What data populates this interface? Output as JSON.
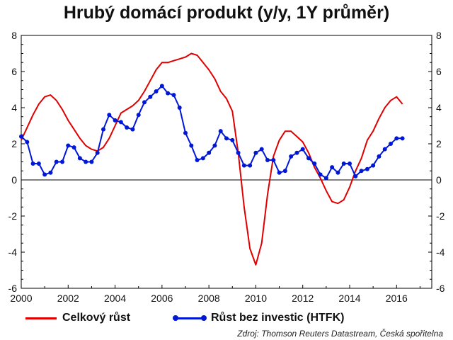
{
  "chart_data": {
    "type": "line",
    "title": "Hrubý domácí produkt (y/y, 1Y průměr)",
    "source": "Zdroj: Thomson Reuters Datastream, Česká spořitelna",
    "xlim": [
      2000,
      2017.5
    ],
    "ylim": [
      -6,
      8
    ],
    "x_ticks": [
      "2000",
      "2002",
      "2004",
      "2006",
      "2008",
      "2010",
      "2012",
      "2014",
      "2016"
    ],
    "y_ticks": [
      "8",
      "6",
      "4",
      "2",
      "0",
      "-2",
      "-4",
      "-6"
    ],
    "grid": false,
    "zero_line": true,
    "legend_position": "bottom",
    "series": [
      {
        "name": "Celkový růst",
        "color": "#e00000",
        "markers": false,
        "x": [
          2000.0,
          2000.5,
          2000.75,
          2001.0,
          2001.25,
          2001.5,
          2001.75,
          2002.0,
          2002.25,
          2002.5,
          2002.75,
          2003.0,
          2003.25,
          2003.5,
          2003.75,
          2004.0,
          2004.25,
          2004.5,
          2004.75,
          2005.0,
          2005.25,
          2005.5,
          2005.75,
          2006.0,
          2006.25,
          2006.5,
          2006.75,
          2007.0,
          2007.25,
          2007.5,
          2007.75,
          2008.0,
          2008.25,
          2008.5,
          2008.75,
          2009.0,
          2009.25,
          2009.5,
          2009.75,
          2010.0,
          2010.25,
          2010.5,
          2010.75,
          2011.0,
          2011.25,
          2011.5,
          2011.75,
          2012.0,
          2012.25,
          2012.5,
          2012.75,
          2013.0,
          2013.25,
          2013.5,
          2013.75,
          2014.0,
          2014.25,
          2014.5,
          2014.75,
          2015.0,
          2015.25,
          2015.5,
          2015.75,
          2016.0,
          2016.25
        ],
        "values": [
          2.2,
          3.6,
          4.2,
          4.6,
          4.7,
          4.4,
          3.9,
          3.3,
          2.8,
          2.3,
          1.9,
          1.7,
          1.6,
          1.8,
          2.3,
          3.0,
          3.7,
          3.9,
          4.1,
          4.4,
          4.9,
          5.5,
          6.1,
          6.5,
          6.5,
          6.6,
          6.7,
          6.8,
          7.0,
          6.9,
          6.5,
          6.1,
          5.6,
          4.9,
          4.5,
          3.8,
          1.5,
          -1.5,
          -3.8,
          -4.7,
          -3.5,
          -0.8,
          1.3,
          2.2,
          2.7,
          2.7,
          2.4,
          2.1,
          1.5,
          0.7,
          0.1,
          -0.6,
          -1.2,
          -1.3,
          -1.1,
          -0.4,
          0.5,
          1.2,
          2.2,
          2.7,
          3.4,
          4.0,
          4.4,
          4.6,
          4.2
        ]
      },
      {
        "name": "Růst bez investic (HTFK)",
        "color": "#0018d6",
        "markers": true,
        "x": [
          2000.0,
          2000.25,
          2000.5,
          2000.75,
          2001.0,
          2001.25,
          2001.5,
          2001.75,
          2002.0,
          2002.25,
          2002.5,
          2002.75,
          2003.0,
          2003.25,
          2003.5,
          2003.75,
          2004.0,
          2004.25,
          2004.5,
          2004.75,
          2005.0,
          2005.25,
          2005.5,
          2005.75,
          2006.0,
          2006.25,
          2006.5,
          2006.75,
          2007.0,
          2007.25,
          2007.5,
          2007.75,
          2008.0,
          2008.25,
          2008.5,
          2008.75,
          2009.0,
          2009.25,
          2009.5,
          2009.75,
          2010.0,
          2010.25,
          2010.5,
          2010.75,
          2011.0,
          2011.25,
          2011.5,
          2011.75,
          2012.0,
          2012.25,
          2012.5,
          2012.75,
          2013.0,
          2013.25,
          2013.5,
          2013.75,
          2014.0,
          2014.25,
          2014.5,
          2014.75,
          2015.0,
          2015.25,
          2015.5,
          2015.75,
          2016.0,
          2016.25
        ],
        "values": [
          2.4,
          2.1,
          0.9,
          0.9,
          0.3,
          0.4,
          1.0,
          1.0,
          1.9,
          1.8,
          1.2,
          1.0,
          1.0,
          1.5,
          2.8,
          3.6,
          3.3,
          3.2,
          2.9,
          2.8,
          3.6,
          4.3,
          4.6,
          4.9,
          5.2,
          4.8,
          4.7,
          4.0,
          2.6,
          1.9,
          1.1,
          1.2,
          1.5,
          1.9,
          2.7,
          2.3,
          2.2,
          1.5,
          0.8,
          0.8,
          1.5,
          1.7,
          1.1,
          1.1,
          0.4,
          0.5,
          1.3,
          1.5,
          1.7,
          1.2,
          0.9,
          0.3,
          0.1,
          0.7,
          0.4,
          0.9,
          0.9,
          0.2,
          0.5,
          0.6,
          0.8,
          1.3,
          1.7,
          2.0,
          2.3,
          2.3
        ]
      }
    ]
  }
}
